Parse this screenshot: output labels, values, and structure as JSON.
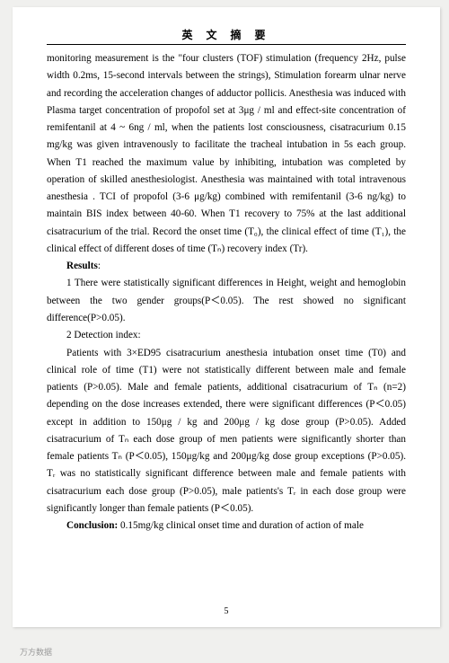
{
  "header": "英 文 摘 要",
  "p1": "monitoring measurement is the \"four clusters (TOF) stimulation (frequency 2Hz, pulse width 0.2ms, 15-second intervals between the strings), Stimulation forearm ulnar nerve and recording the acceleration changes of adductor pollicis. Anesthesia was induced with Plasma target concentration of propofol set at 3μg / ml and effect-site concentration of remifentanil at 4 ~ 6ng / ml, when the patients lost consciousness, cisatracurium 0.15 mg/kg was given intravenously to facilitate the tracheal intubation   in 5s each group. When T1 reached the maximum value by inhibiting, intubation was completed by operation of skilled anesthesiologist. Anesthesia was maintained with total intravenous anesthesia . TCI of propofol (3-6 μg/kg) combined with remifentanil (3-6 ng/kg) to maintain BIS index between 40-60. When T1 recovery to 75% at the last additional cisatracurium of the trial. Record the onset time (T₀), the clinical effect of time (T₁), the clinical effect of different doses of time (Tₙ) recovery index (Tr).",
  "results_label": "Results",
  "p2": "1 There were statistically significant differences in Height, weight and hemoglobin between the two gender groups(P＜0.05). The rest showed no significant difference(P>0.05).",
  "p3": "2 Detection index:",
  "p4": "Patients with 3×ED95 cisatracurium anesthesia intubation onset time (T0) and clinical role of time (T1) were not statistically different between male and female patients (P>0.05). Male and female patients, additional cisatracurium of Tₙ (n=2) depending on the dose increases extended, there were significant differences (P＜0.05) except in addition to 150μg / kg and 200μg / kg dose group (P>0.05). Added cisatracurium of Tₙ each dose group of men patients were significantly shorter than female patients Tₙ (P＜0.05), 150μg/kg and 200μg/kg dose group exceptions (P>0.05). Tᵣ was no statistically significant difference between male and female patients with cisatracurium each dose group (P>0.05), male patients's Tᵣ in each dose group were significantly longer than female patients (P＜0.05).",
  "conclusion_label": "Conclusion:",
  "p5": " 0.15mg/kg clinical onset time and duration of action of male",
  "page_number": "5",
  "watermark": "万方数据"
}
